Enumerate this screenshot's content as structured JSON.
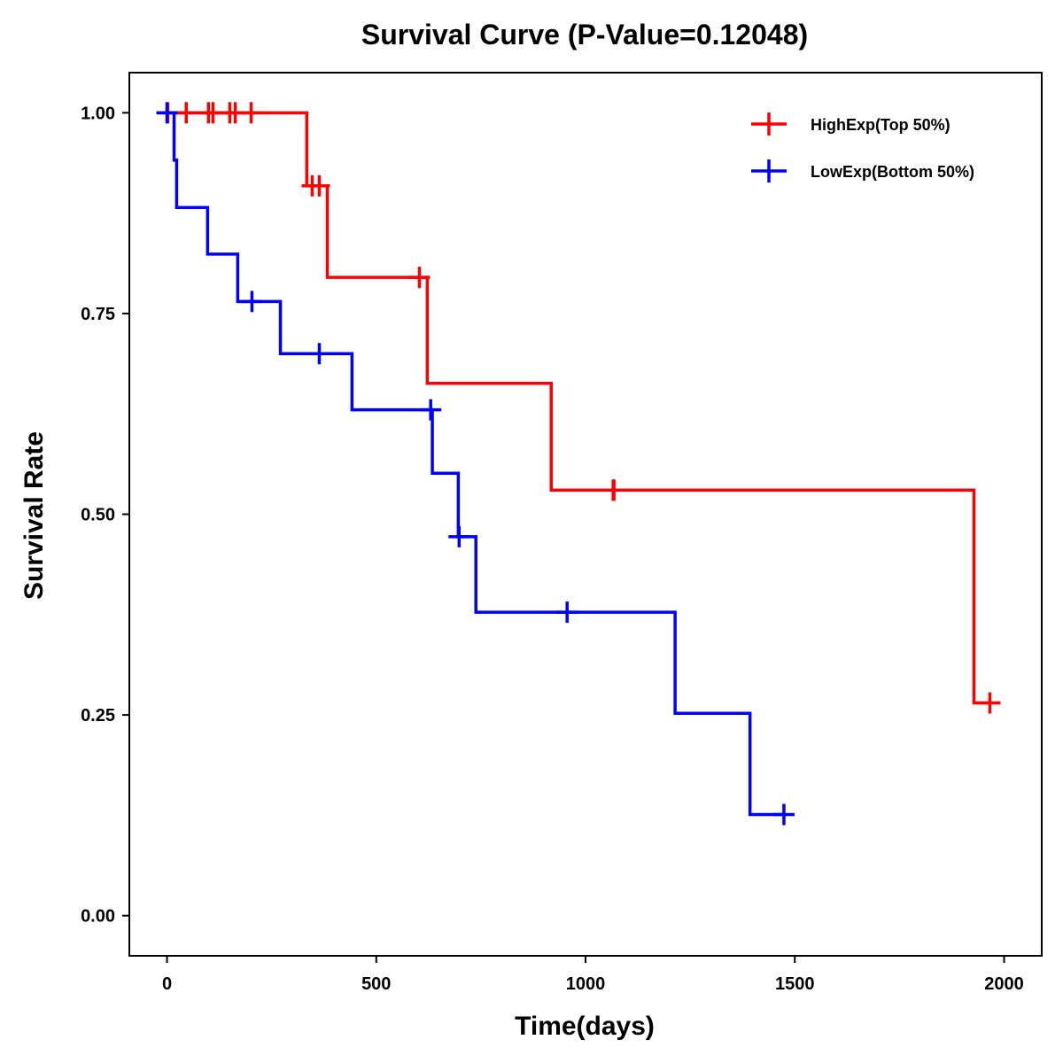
{
  "chart_data": {
    "type": "line",
    "subtype": "kaplan-meier-step",
    "title": "Survival Curve (P-Value=0.12048)",
    "xlabel": "Time(days)",
    "ylabel": "Survival Rate",
    "xlim": [
      -90,
      2090
    ],
    "ylim": [
      -0.05,
      1.05
    ],
    "xticks": [
      0,
      500,
      1000,
      1500,
      2000
    ],
    "xtick_labels": [
      "0",
      "500",
      "1000",
      "1500",
      "2000"
    ],
    "yticks": [
      0,
      0.25,
      0.5,
      0.75,
      1.0
    ],
    "ytick_labels": [
      "0.00",
      "0.25",
      "0.50",
      "0.75",
      "1.00"
    ],
    "grid": false,
    "legend_position": "top-right",
    "series": [
      {
        "name": "HighExp(Top 50%)",
        "color": "#ff0000",
        "steps": [
          {
            "t": 0,
            "s": 1.0
          },
          {
            "t": 334,
            "s": 0.909
          },
          {
            "t": 383,
            "s": 0.795
          },
          {
            "t": 622,
            "s": 0.663
          },
          {
            "t": 918,
            "s": 0.53
          },
          {
            "t": 1928,
            "s": 0.265
          }
        ],
        "end_t": 1966,
        "censored": [
          {
            "t": 2,
            "s": 1.0
          },
          {
            "t": 46,
            "s": 1.0
          },
          {
            "t": 99,
            "s": 1.0
          },
          {
            "t": 110,
            "s": 1.0
          },
          {
            "t": 150,
            "s": 1.0
          },
          {
            "t": 163,
            "s": 1.0
          },
          {
            "t": 201,
            "s": 1.0
          },
          {
            "t": 347,
            "s": 0.909
          },
          {
            "t": 364,
            "s": 0.909
          },
          {
            "t": 603,
            "s": 0.795
          },
          {
            "t": 1066,
            "s": 0.53
          },
          {
            "t": 1068,
            "s": 0.53
          },
          {
            "t": 1966,
            "s": 0.265
          }
        ]
      },
      {
        "name": "LowExp(Bottom 50%)",
        "color": "#0000ff",
        "steps": [
          {
            "t": 0,
            "s": 1.0
          },
          {
            "t": 17,
            "s": 0.941
          },
          {
            "t": 23,
            "s": 0.882
          },
          {
            "t": 97,
            "s": 0.824
          },
          {
            "t": 169,
            "s": 0.765
          },
          {
            "t": 271,
            "s": 0.7
          },
          {
            "t": 442,
            "s": 0.63
          },
          {
            "t": 634,
            "s": 0.551
          },
          {
            "t": 696,
            "s": 0.472
          },
          {
            "t": 738,
            "s": 0.378
          },
          {
            "t": 1214,
            "s": 0.252
          },
          {
            "t": 1393,
            "s": 0.126
          }
        ],
        "end_t": 1474,
        "censored": [
          {
            "t": 0,
            "s": 1.0
          },
          {
            "t": 203,
            "s": 0.765
          },
          {
            "t": 364,
            "s": 0.7
          },
          {
            "t": 630,
            "s": 0.63
          },
          {
            "t": 698,
            "s": 0.472
          },
          {
            "t": 956,
            "s": 0.378
          },
          {
            "t": 1474,
            "s": 0.126
          }
        ]
      }
    ]
  }
}
